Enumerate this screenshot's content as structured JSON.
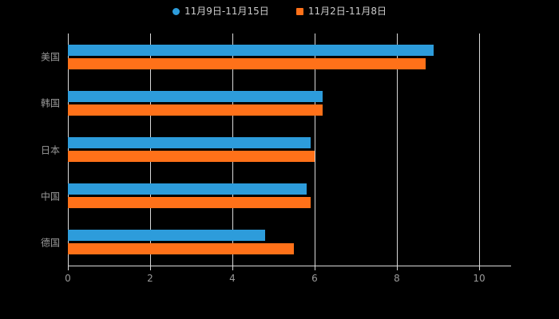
{
  "chart_data": {
    "type": "bar",
    "orientation": "horizontal",
    "title": "",
    "xlabel": "",
    "ylabel": "",
    "background": "#000000",
    "grid": true,
    "grid_color": "#d9d9d9",
    "legend_position": "top",
    "xlim": [
      0,
      10
    ],
    "xticks": [
      0,
      2,
      4,
      6,
      8,
      10
    ],
    "categories": [
      "美国",
      "韩国",
      "日本",
      "中国",
      "德国"
    ],
    "series": [
      {
        "name": "11月9日-11月15日",
        "color": "#2D9CDB",
        "marker": "circle",
        "values": [
          8.9,
          6.2,
          5.9,
          5.8,
          4.8
        ]
      },
      {
        "name": "11月2日-11月8日",
        "color": "#FF7119",
        "marker": "square",
        "values": [
          8.7,
          6.2,
          6.0,
          5.9,
          5.5
        ]
      }
    ]
  }
}
